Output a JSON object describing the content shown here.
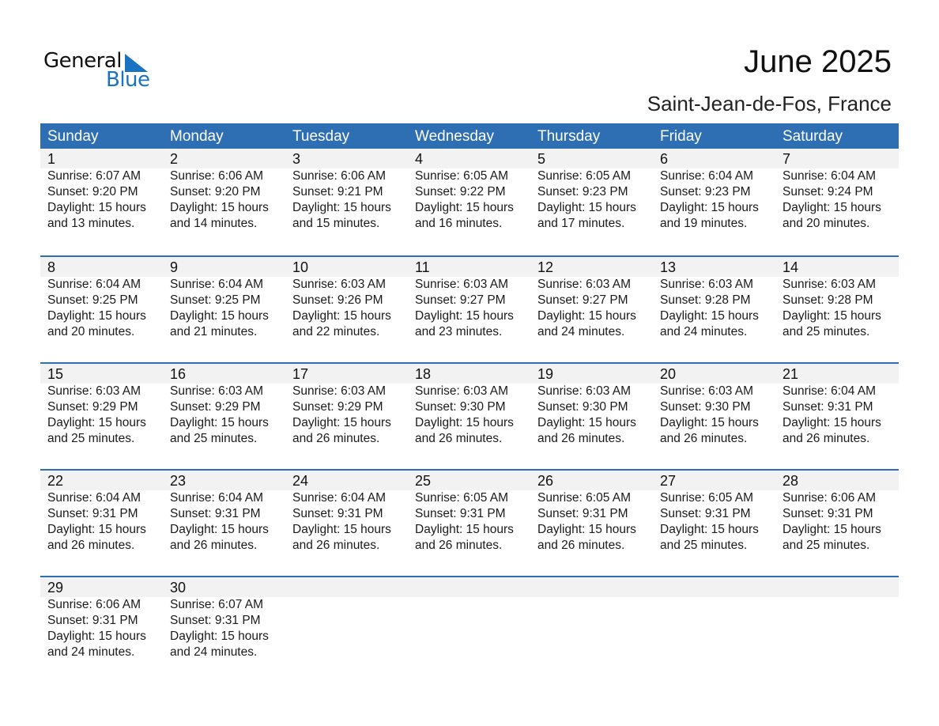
{
  "logo": {
    "word1": "General",
    "word2": "Blue",
    "accent": "#1a73c0"
  },
  "header": {
    "title": "June 2025",
    "location": "Saint-Jean-de-Fos, France"
  },
  "colors": {
    "header_bg": "#2e6fb3",
    "date_band": "#f2f2f2"
  },
  "weekdays": [
    "Sunday",
    "Monday",
    "Tuesday",
    "Wednesday",
    "Thursday",
    "Friday",
    "Saturday"
  ],
  "weeks": [
    [
      {
        "day": "1",
        "sunrise": "Sunrise: 6:07 AM",
        "sunset": "Sunset: 9:20 PM",
        "daylight": "Daylight: 15 hours",
        "minutes": "and 13 minutes."
      },
      {
        "day": "2",
        "sunrise": "Sunrise: 6:06 AM",
        "sunset": "Sunset: 9:20 PM",
        "daylight": "Daylight: 15 hours",
        "minutes": "and 14 minutes."
      },
      {
        "day": "3",
        "sunrise": "Sunrise: 6:06 AM",
        "sunset": "Sunset: 9:21 PM",
        "daylight": "Daylight: 15 hours",
        "minutes": "and 15 minutes."
      },
      {
        "day": "4",
        "sunrise": "Sunrise: 6:05 AM",
        "sunset": "Sunset: 9:22 PM",
        "daylight": "Daylight: 15 hours",
        "minutes": "and 16 minutes."
      },
      {
        "day": "5",
        "sunrise": "Sunrise: 6:05 AM",
        "sunset": "Sunset: 9:23 PM",
        "daylight": "Daylight: 15 hours",
        "minutes": "and 17 minutes."
      },
      {
        "day": "6",
        "sunrise": "Sunrise: 6:04 AM",
        "sunset": "Sunset: 9:23 PM",
        "daylight": "Daylight: 15 hours",
        "minutes": "and 19 minutes."
      },
      {
        "day": "7",
        "sunrise": "Sunrise: 6:04 AM",
        "sunset": "Sunset: 9:24 PM",
        "daylight": "Daylight: 15 hours",
        "minutes": "and 20 minutes."
      }
    ],
    [
      {
        "day": "8",
        "sunrise": "Sunrise: 6:04 AM",
        "sunset": "Sunset: 9:25 PM",
        "daylight": "Daylight: 15 hours",
        "minutes": "and 20 minutes."
      },
      {
        "day": "9",
        "sunrise": "Sunrise: 6:04 AM",
        "sunset": "Sunset: 9:25 PM",
        "daylight": "Daylight: 15 hours",
        "minutes": "and 21 minutes."
      },
      {
        "day": "10",
        "sunrise": "Sunrise: 6:03 AM",
        "sunset": "Sunset: 9:26 PM",
        "daylight": "Daylight: 15 hours",
        "minutes": "and 22 minutes."
      },
      {
        "day": "11",
        "sunrise": "Sunrise: 6:03 AM",
        "sunset": "Sunset: 9:27 PM",
        "daylight": "Daylight: 15 hours",
        "minutes": "and 23 minutes."
      },
      {
        "day": "12",
        "sunrise": "Sunrise: 6:03 AM",
        "sunset": "Sunset: 9:27 PM",
        "daylight": "Daylight: 15 hours",
        "minutes": "and 24 minutes."
      },
      {
        "day": "13",
        "sunrise": "Sunrise: 6:03 AM",
        "sunset": "Sunset: 9:28 PM",
        "daylight": "Daylight: 15 hours",
        "minutes": "and 24 minutes."
      },
      {
        "day": "14",
        "sunrise": "Sunrise: 6:03 AM",
        "sunset": "Sunset: 9:28 PM",
        "daylight": "Daylight: 15 hours",
        "minutes": "and 25 minutes."
      }
    ],
    [
      {
        "day": "15",
        "sunrise": "Sunrise: 6:03 AM",
        "sunset": "Sunset: 9:29 PM",
        "daylight": "Daylight: 15 hours",
        "minutes": "and 25 minutes."
      },
      {
        "day": "16",
        "sunrise": "Sunrise: 6:03 AM",
        "sunset": "Sunset: 9:29 PM",
        "daylight": "Daylight: 15 hours",
        "minutes": "and 25 minutes."
      },
      {
        "day": "17",
        "sunrise": "Sunrise: 6:03 AM",
        "sunset": "Sunset: 9:29 PM",
        "daylight": "Daylight: 15 hours",
        "minutes": "and 26 minutes."
      },
      {
        "day": "18",
        "sunrise": "Sunrise: 6:03 AM",
        "sunset": "Sunset: 9:30 PM",
        "daylight": "Daylight: 15 hours",
        "minutes": "and 26 minutes."
      },
      {
        "day": "19",
        "sunrise": "Sunrise: 6:03 AM",
        "sunset": "Sunset: 9:30 PM",
        "daylight": "Daylight: 15 hours",
        "minutes": "and 26 minutes."
      },
      {
        "day": "20",
        "sunrise": "Sunrise: 6:03 AM",
        "sunset": "Sunset: 9:30 PM",
        "daylight": "Daylight: 15 hours",
        "minutes": "and 26 minutes."
      },
      {
        "day": "21",
        "sunrise": "Sunrise: 6:04 AM",
        "sunset": "Sunset: 9:31 PM",
        "daylight": "Daylight: 15 hours",
        "minutes": "and 26 minutes."
      }
    ],
    [
      {
        "day": "22",
        "sunrise": "Sunrise: 6:04 AM",
        "sunset": "Sunset: 9:31 PM",
        "daylight": "Daylight: 15 hours",
        "minutes": "and 26 minutes."
      },
      {
        "day": "23",
        "sunrise": "Sunrise: 6:04 AM",
        "sunset": "Sunset: 9:31 PM",
        "daylight": "Daylight: 15 hours",
        "minutes": "and 26 minutes."
      },
      {
        "day": "24",
        "sunrise": "Sunrise: 6:04 AM",
        "sunset": "Sunset: 9:31 PM",
        "daylight": "Daylight: 15 hours",
        "minutes": "and 26 minutes."
      },
      {
        "day": "25",
        "sunrise": "Sunrise: 6:05 AM",
        "sunset": "Sunset: 9:31 PM",
        "daylight": "Daylight: 15 hours",
        "minutes": "and 26 minutes."
      },
      {
        "day": "26",
        "sunrise": "Sunrise: 6:05 AM",
        "sunset": "Sunset: 9:31 PM",
        "daylight": "Daylight: 15 hours",
        "minutes": "and 26 minutes."
      },
      {
        "day": "27",
        "sunrise": "Sunrise: 6:05 AM",
        "sunset": "Sunset: 9:31 PM",
        "daylight": "Daylight: 15 hours",
        "minutes": "and 25 minutes."
      },
      {
        "day": "28",
        "sunrise": "Sunrise: 6:06 AM",
        "sunset": "Sunset: 9:31 PM",
        "daylight": "Daylight: 15 hours",
        "minutes": "and 25 minutes."
      }
    ],
    [
      {
        "day": "29",
        "sunrise": "Sunrise: 6:06 AM",
        "sunset": "Sunset: 9:31 PM",
        "daylight": "Daylight: 15 hours",
        "minutes": "and 24 minutes."
      },
      {
        "day": "30",
        "sunrise": "Sunrise: 6:07 AM",
        "sunset": "Sunset: 9:31 PM",
        "daylight": "Daylight: 15 hours",
        "minutes": "and 24 minutes."
      }
    ]
  ]
}
